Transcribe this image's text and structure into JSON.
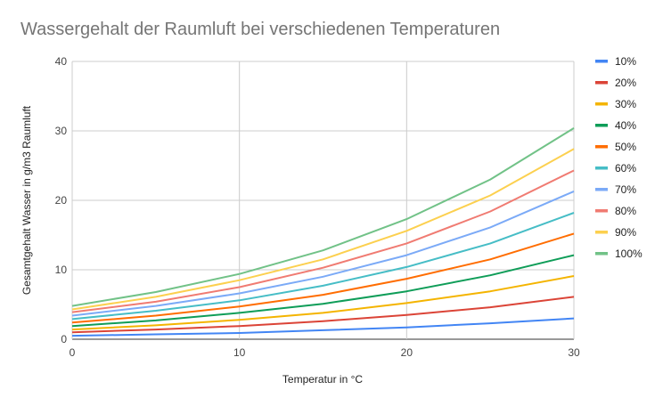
{
  "chart_data": {
    "type": "line",
    "title": "Wassergehalt der Raumluft bei verschiedenen Temperaturen",
    "xlabel": "Temperatur in °C",
    "ylabel": "Gesamtgehalt Wasser in g/m3 Raumluft",
    "xlim": [
      0,
      30
    ],
    "ylim": [
      0,
      40
    ],
    "xticks": [
      "0",
      "10",
      "20",
      "30"
    ],
    "yticks": [
      "0",
      "10",
      "20",
      "30",
      "40"
    ],
    "grid": true,
    "legend_position": "right",
    "x": [
      0,
      5,
      10,
      15,
      20,
      25,
      30
    ],
    "series": [
      {
        "name": "10%",
        "color": "#4285f4",
        "values": [
          0.5,
          0.7,
          0.9,
          1.3,
          1.7,
          2.3,
          3.0
        ]
      },
      {
        "name": "20%",
        "color": "#db4437",
        "values": [
          1.0,
          1.4,
          1.9,
          2.6,
          3.5,
          4.6,
          6.1
        ]
      },
      {
        "name": "30%",
        "color": "#f4b400",
        "values": [
          1.4,
          2.0,
          2.8,
          3.8,
          5.2,
          6.9,
          9.1
        ]
      },
      {
        "name": "40%",
        "color": "#0f9d58",
        "values": [
          1.9,
          2.7,
          3.8,
          5.1,
          6.9,
          9.2,
          12.1
        ]
      },
      {
        "name": "50%",
        "color": "#ff6d01",
        "values": [
          2.4,
          3.4,
          4.7,
          6.4,
          8.7,
          11.5,
          15.2
        ]
      },
      {
        "name": "60%",
        "color": "#46bdc6",
        "values": [
          2.9,
          4.1,
          5.6,
          7.7,
          10.4,
          13.8,
          18.2
        ]
      },
      {
        "name": "70%",
        "color": "#7baaf7",
        "values": [
          3.4,
          4.8,
          6.6,
          9.0,
          12.1,
          16.1,
          21.3
        ]
      },
      {
        "name": "80%",
        "color": "#f07b72",
        "values": [
          3.9,
          5.4,
          7.5,
          10.3,
          13.8,
          18.4,
          24.3
        ]
      },
      {
        "name": "90%",
        "color": "#fcd04f",
        "values": [
          4.3,
          6.1,
          8.5,
          11.5,
          15.6,
          20.7,
          27.4
        ]
      },
      {
        "name": "100%",
        "color": "#71c287",
        "values": [
          4.8,
          6.8,
          9.4,
          12.8,
          17.3,
          23.0,
          30.4
        ]
      }
    ]
  }
}
